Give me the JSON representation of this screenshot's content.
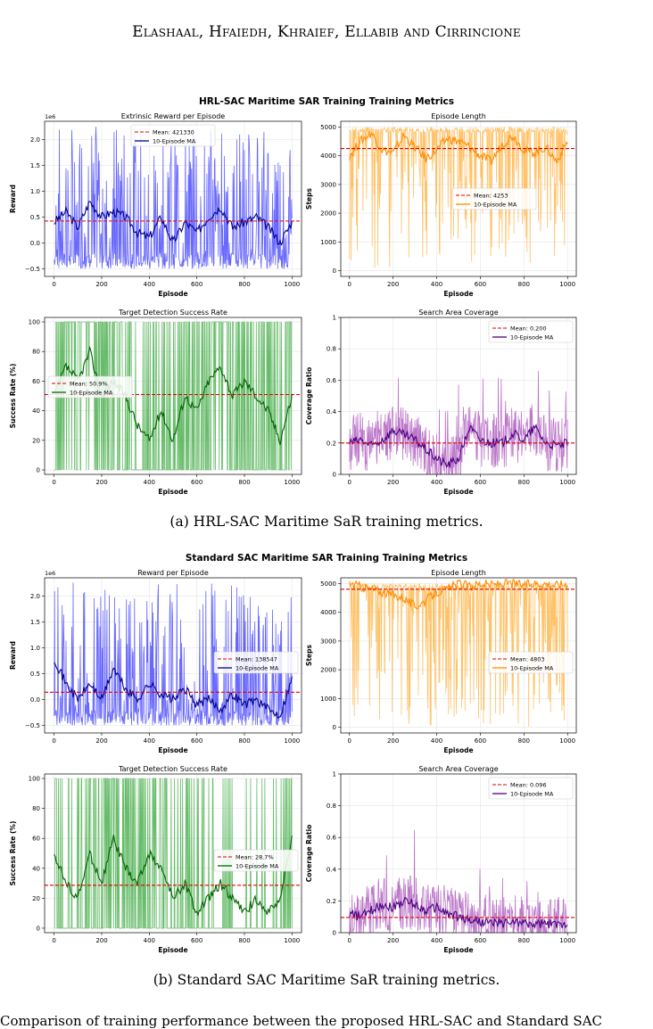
{
  "running_head": "Elashaal, Hfaiedh, Khraief, Ellabib and Cirrincione",
  "figure_a": {
    "suptitle": "HRL-SAC Maritime SAR Training Training Metrics",
    "caption": "(a) HRL-SAC Maritime SaR training metrics."
  },
  "figure_b": {
    "suptitle": "Standard SAC Maritime SAR Training Training Metrics",
    "caption": "(b) Standard SAC Maritime SaR training metrics."
  },
  "bottom_text": "Comparison of training performance between the proposed HRL-SAC and Standard SAC",
  "colors": {
    "reward": "#4d4dff",
    "reward_ma": "#00008b",
    "length": "#ffb74d",
    "length_ma": "#ff8c00",
    "success": "#4caf50",
    "success_ma": "#006400",
    "coverage": "#b05fbf",
    "coverage_ma": "#4b0082",
    "mean": "#e00000"
  },
  "chart_data": [
    {
      "id": "a_reward",
      "type": "line",
      "title": "Extrinsic Reward per Episode",
      "xlabel": "Episode",
      "ylabel": "Reward",
      "offset_text": "1e6",
      "xlim": [
        -40,
        1040
      ],
      "ylim": [
        -0.65,
        2.35
      ],
      "xticks": [
        0,
        200,
        400,
        600,
        800,
        1000
      ],
      "yticks": [
        -0.5,
        0.0,
        0.5,
        1.0,
        1.5,
        2.0
      ],
      "ytick_labels": [
        "−0.5",
        "0.0",
        "0.5",
        "1.0",
        "1.5",
        "2.0"
      ],
      "series": [
        {
          "name": "Mean: 421330",
          "kind": "mean",
          "value": 0.42133
        },
        {
          "name": "10-Episode MA",
          "kind": "ma",
          "x": [
            0,
            50,
            100,
            150,
            200,
            250,
            300,
            350,
            400,
            450,
            500,
            550,
            600,
            650,
            700,
            750,
            800,
            850,
            900,
            950,
            1000
          ],
          "values": [
            0.4,
            0.6,
            0.3,
            0.8,
            0.5,
            0.6,
            0.5,
            0.2,
            0.1,
            0.5,
            0.0,
            0.4,
            0.2,
            0.5,
            0.7,
            0.3,
            0.4,
            0.5,
            0.3,
            0.0,
            0.4
          ]
        },
        {
          "name": "raw",
          "kind": "raw",
          "x": [
            0,
            1000
          ],
          "values": [
            -0.5,
            2.3
          ]
        }
      ],
      "legend": "top-center",
      "grid": true
    },
    {
      "id": "a_length",
      "type": "line",
      "title": "Episode Length",
      "xlabel": "Episode",
      "ylabel": "Steps",
      "xlim": [
        -40,
        1040
      ],
      "ylim": [
        -200,
        5200
      ],
      "xticks": [
        0,
        200,
        400,
        600,
        800,
        1000
      ],
      "yticks": [
        0,
        1000,
        2000,
        3000,
        4000,
        5000
      ],
      "series": [
        {
          "name": "Mean: 4253",
          "kind": "mean",
          "value": 4253
        },
        {
          "name": "10-Episode MA",
          "kind": "ma",
          "x": [
            0,
            50,
            100,
            150,
            200,
            250,
            300,
            350,
            400,
            450,
            500,
            550,
            600,
            650,
            700,
            750,
            800,
            850,
            900,
            950,
            1000
          ],
          "values": [
            4000,
            4500,
            4800,
            4200,
            4100,
            4700,
            4300,
            3900,
            4200,
            4600,
            4500,
            4300,
            4000,
            3800,
            4400,
            4700,
            4200,
            4100,
            4300,
            3800,
            4500
          ]
        },
        {
          "name": "raw",
          "kind": "raw",
          "x": [
            0,
            1000
          ],
          "values": [
            100,
            5000
          ]
        }
      ],
      "legend": "center",
      "grid": true
    },
    {
      "id": "a_success",
      "type": "line",
      "title": "Target Detection Success Rate",
      "xlabel": "Episode",
      "ylabel": "Success Rate (%)",
      "xlim": [
        -40,
        1040
      ],
      "ylim": [
        -3,
        103
      ],
      "xticks": [
        0,
        200,
        400,
        600,
        800,
        1000
      ],
      "yticks": [
        0,
        20,
        40,
        60,
        80,
        100
      ],
      "series": [
        {
          "name": "Mean: 50.9%",
          "kind": "mean",
          "value": 50.9
        },
        {
          "name": "10-Episode MA",
          "kind": "ma",
          "x": [
            0,
            50,
            100,
            150,
            200,
            250,
            300,
            350,
            400,
            450,
            500,
            550,
            600,
            650,
            700,
            750,
            800,
            850,
            900,
            950,
            1000
          ],
          "values": [
            50,
            70,
            60,
            80,
            50,
            60,
            50,
            30,
            20,
            40,
            20,
            50,
            40,
            60,
            70,
            50,
            60,
            50,
            40,
            20,
            50
          ]
        },
        {
          "name": "raw",
          "kind": "raw",
          "x": [
            0,
            1000
          ],
          "values": [
            0,
            100
          ]
        }
      ],
      "legend": "center-left",
      "grid": true
    },
    {
      "id": "a_coverage",
      "type": "line",
      "title": "Search Area Coverage",
      "xlabel": "Episode",
      "ylabel": "Coverage Ratio",
      "xlim": [
        -40,
        1040
      ],
      "ylim": [
        0.0,
        1.0
      ],
      "xticks": [
        0,
        200,
        400,
        600,
        800,
        1000
      ],
      "yticks": [
        0.0,
        0.2,
        0.4,
        0.6,
        0.8,
        1.0
      ],
      "series": [
        {
          "name": "Mean: 0.200",
          "kind": "mean",
          "value": 0.2
        },
        {
          "name": "10-Episode MA",
          "kind": "ma",
          "x": [
            0,
            50,
            100,
            150,
            200,
            250,
            300,
            350,
            400,
            450,
            500,
            550,
            600,
            650,
            700,
            750,
            800,
            850,
            900,
            950,
            1000
          ],
          "values": [
            0.2,
            0.22,
            0.18,
            0.22,
            0.28,
            0.25,
            0.22,
            0.16,
            0.1,
            0.06,
            0.1,
            0.3,
            0.22,
            0.2,
            0.2,
            0.26,
            0.22,
            0.3,
            0.2,
            0.18,
            0.2
          ]
        },
        {
          "name": "raw",
          "kind": "raw",
          "x": [
            0,
            1000
          ],
          "values": [
            0.0,
            0.8
          ]
        }
      ],
      "legend": "top-right",
      "grid": true
    },
    {
      "id": "b_reward",
      "type": "line",
      "title": "Reward per Episode",
      "xlabel": "Episode",
      "ylabel": "Reward",
      "offset_text": "1e6",
      "xlim": [
        -40,
        1040
      ],
      "ylim": [
        -0.65,
        2.35
      ],
      "xticks": [
        0,
        200,
        400,
        600,
        800,
        1000
      ],
      "yticks": [
        -0.5,
        0.0,
        0.5,
        1.0,
        1.5,
        2.0
      ],
      "ytick_labels": [
        "−0.5",
        "0.0",
        "0.5",
        "1.0",
        "1.5",
        "2.0"
      ],
      "series": [
        {
          "name": "Mean: 138547",
          "kind": "mean",
          "value": 0.138547
        },
        {
          "name": "10-Episode MA",
          "kind": "ma",
          "x": [
            0,
            50,
            100,
            150,
            200,
            250,
            300,
            350,
            400,
            450,
            500,
            550,
            600,
            650,
            700,
            750,
            800,
            850,
            900,
            950,
            1000
          ],
          "values": [
            0.8,
            0.3,
            0.0,
            0.3,
            0.0,
            0.6,
            0.2,
            0.0,
            0.3,
            0.1,
            0.0,
            0.2,
            -0.1,
            0.0,
            -0.2,
            0.1,
            -0.1,
            0.0,
            -0.2,
            -0.3,
            0.4
          ]
        },
        {
          "name": "raw",
          "kind": "raw",
          "x": [
            0,
            1000
          ],
          "values": [
            -0.5,
            2.3
          ]
        }
      ],
      "legend": "center-right",
      "grid": true
    },
    {
      "id": "b_length",
      "type": "line",
      "title": "Episode Length",
      "xlabel": "Episode",
      "ylabel": "Steps",
      "xlim": [
        -40,
        1040
      ],
      "ylim": [
        -200,
        5200
      ],
      "xticks": [
        0,
        200,
        400,
        600,
        800,
        1000
      ],
      "yticks": [
        0,
        1000,
        2000,
        3000,
        4000,
        5000
      ],
      "series": [
        {
          "name": "Mean: 4803",
          "kind": "mean",
          "value": 4803
        },
        {
          "name": "10-Episode MA",
          "kind": "ma",
          "x": [
            0,
            50,
            100,
            150,
            200,
            250,
            300,
            350,
            400,
            450,
            500,
            550,
            600,
            650,
            700,
            750,
            800,
            850,
            900,
            950,
            1000
          ],
          "values": [
            5000,
            4900,
            4800,
            4700,
            4600,
            4500,
            4200,
            4400,
            4700,
            4800,
            5000,
            4900,
            5000,
            4950,
            5000,
            5000,
            4950,
            5000,
            5000,
            4950,
            5000
          ]
        },
        {
          "name": "raw",
          "kind": "raw",
          "x": [
            0,
            1000
          ],
          "values": [
            0,
            5000
          ]
        }
      ],
      "legend": "center-right",
      "grid": true
    },
    {
      "id": "b_success",
      "type": "line",
      "title": "Target Detection Success Rate",
      "xlabel": "Episode",
      "ylabel": "Success Rate (%)",
      "xlim": [
        -40,
        1040
      ],
      "ylim": [
        -3,
        103
      ],
      "xticks": [
        0,
        200,
        400,
        600,
        800,
        1000
      ],
      "yticks": [
        0,
        20,
        40,
        60,
        80,
        100
      ],
      "series": [
        {
          "name": "Mean: 28.7%",
          "kind": "mean",
          "value": 28.7
        },
        {
          "name": "10-Episode MA",
          "kind": "ma",
          "x": [
            0,
            50,
            100,
            150,
            200,
            250,
            300,
            350,
            400,
            450,
            500,
            550,
            600,
            650,
            700,
            750,
            800,
            850,
            900,
            950,
            1000
          ],
          "values": [
            50,
            30,
            20,
            50,
            30,
            60,
            40,
            30,
            50,
            40,
            20,
            30,
            10,
            20,
            30,
            20,
            10,
            20,
            10,
            20,
            60
          ]
        },
        {
          "name": "raw",
          "kind": "raw",
          "x": [
            0,
            1000
          ],
          "values": [
            0,
            100
          ]
        }
      ],
      "legend": "center-right",
      "grid": true
    },
    {
      "id": "b_coverage",
      "type": "line",
      "title": "Search Area Coverage",
      "xlabel": "Episode",
      "ylabel": "Coverage Ratio",
      "xlim": [
        -40,
        1040
      ],
      "ylim": [
        0.0,
        1.0
      ],
      "xticks": [
        0,
        200,
        400,
        600,
        800,
        1000
      ],
      "yticks": [
        0.0,
        0.2,
        0.4,
        0.6,
        0.8,
        1.0
      ],
      "series": [
        {
          "name": "Mean: 0.096",
          "kind": "mean",
          "value": 0.096
        },
        {
          "name": "10-Episode MA",
          "kind": "ma",
          "x": [
            0,
            50,
            100,
            150,
            200,
            250,
            300,
            350,
            400,
            450,
            500,
            550,
            600,
            650,
            700,
            750,
            800,
            850,
            900,
            950,
            1000
          ],
          "values": [
            0.12,
            0.1,
            0.14,
            0.18,
            0.16,
            0.2,
            0.18,
            0.14,
            0.16,
            0.12,
            0.1,
            0.08,
            0.07,
            0.06,
            0.06,
            0.07,
            0.06,
            0.05,
            0.06,
            0.05,
            0.06
          ]
        },
        {
          "name": "raw",
          "kind": "raw",
          "x": [
            0,
            1000
          ],
          "values": [
            0.0,
            0.78
          ]
        }
      ],
      "legend": "top-right",
      "grid": true
    }
  ]
}
